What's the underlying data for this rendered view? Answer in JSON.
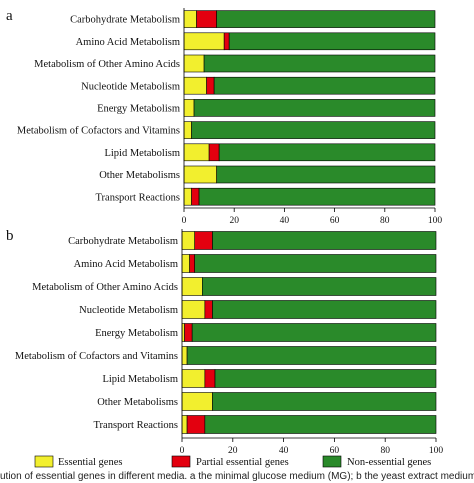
{
  "chart_data": [
    {
      "panel_label": "a",
      "type": "bar",
      "orientation": "horizontal",
      "stacked": true,
      "categories": [
        "Carbohydrate Metabolism",
        "Amino Acid Metabolism",
        "Metabolism of Other Amino Acids",
        "Nucleotide Metabolism",
        "Energy Metabolism",
        "Metabolism of Cofactors and Vitamins",
        "Lipid Metabolism",
        "Other Metabolisms",
        "Transport Reactions"
      ],
      "series": [
        {
          "name": "Essential genes",
          "color": "#f2ef2e",
          "values": [
            5,
            16,
            8,
            9,
            4,
            3,
            10,
            13,
            3
          ]
        },
        {
          "name": "Partial essential genes",
          "color": "#e3000f",
          "values": [
            8,
            2,
            0,
            3,
            0,
            0,
            4,
            0,
            3
          ]
        },
        {
          "name": "Non-essential genes",
          "color": "#2a8a2a",
          "values": [
            87,
            82,
            92,
            88,
            96,
            97,
            86,
            87,
            94
          ]
        }
      ],
      "xlim": [
        0,
        100
      ],
      "xticks": [
        "0",
        "20",
        "40",
        "60",
        "80",
        "100"
      ]
    },
    {
      "panel_label": "b",
      "type": "bar",
      "orientation": "horizontal",
      "stacked": true,
      "categories": [
        "Carbohydrate Metabolism",
        "Amino Acid Metabolism",
        "Metabolism of Other Amino Acids",
        "Nucleotide Metabolism",
        "Energy Metabolism",
        "Metabolism of Cofactors and Vitamins",
        "Lipid Metabolism",
        "Other Metabolisms",
        "Transport Reactions"
      ],
      "series": [
        {
          "name": "Essential genes",
          "color": "#f2ef2e",
          "values": [
            5,
            3,
            8,
            9,
            1,
            2,
            9,
            12,
            2
          ]
        },
        {
          "name": "Partial essential genes",
          "color": "#e3000f",
          "values": [
            7,
            2,
            0,
            3,
            3,
            0,
            4,
            0,
            7
          ]
        },
        {
          "name": "Non-essential genes",
          "color": "#2a8a2a",
          "values": [
            88,
            95,
            92,
            88,
            96,
            98,
            87,
            88,
            91
          ]
        }
      ],
      "xlim": [
        0,
        100
      ],
      "xticks": [
        "0",
        "20",
        "40",
        "60",
        "80",
        "100"
      ]
    }
  ],
  "legend": [
    {
      "label": "Essential genes",
      "color": "#f2ef2e"
    },
    {
      "label": "Partial essential genes",
      "color": "#e3000f"
    },
    {
      "label": "Non-essential genes",
      "color": "#2a8a2a"
    }
  ],
  "caption": "ution of essential genes in different media. a the minimal glucose medium (MG); b the yeast extract medium (YE"
}
